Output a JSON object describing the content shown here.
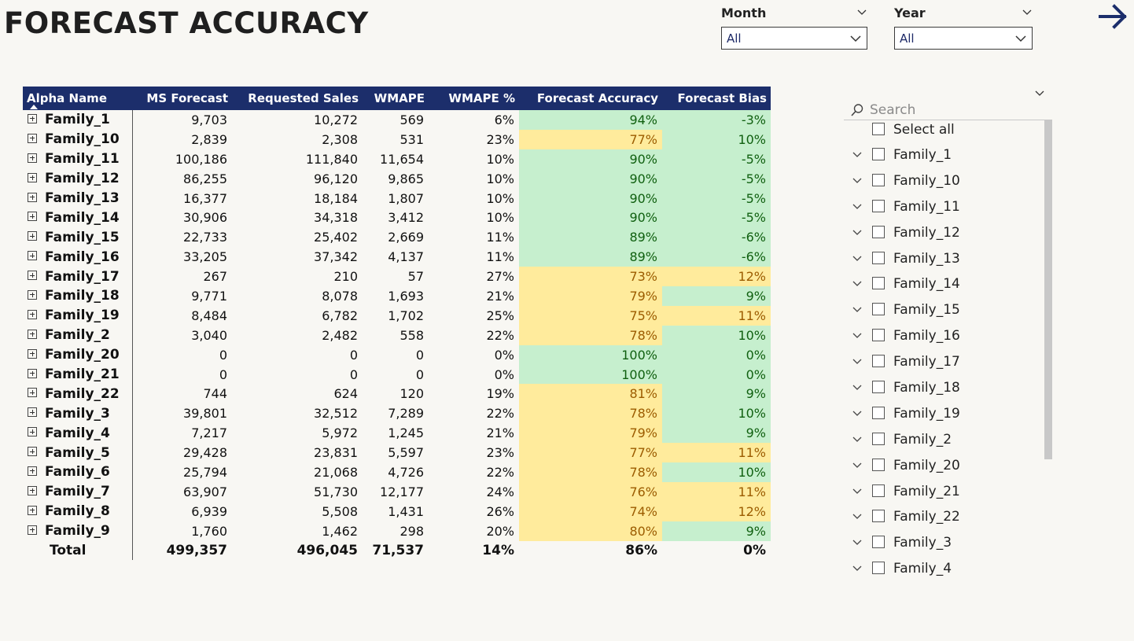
{
  "title": "FORECAST ACCURACY",
  "slicers": {
    "month": {
      "label": "Month",
      "value": "All"
    },
    "year": {
      "label": "Year",
      "value": "All"
    }
  },
  "nav": {
    "icon": "arrow-right-icon",
    "color": "#1c2e6b"
  },
  "colors": {
    "header_bg": "#1c2e6b",
    "good_bg": "#c6efce",
    "good_text": "#106010",
    "warn_bg": "#ffeb9c",
    "warn_text": "#9c5c00"
  },
  "table": {
    "columns": [
      "Alpha Name",
      "MS Forecast",
      "Requested Sales",
      "WMAPE",
      "WMAPE %",
      "Forecast Accuracy",
      "Forecast Bias"
    ],
    "sorted_column": "Alpha Name",
    "rows": [
      {
        "name": "Family_1",
        "ms": "9,703",
        "req": "10,272",
        "wmape": "569",
        "wpct": "6%",
        "acc": "94%",
        "acc_status": "green",
        "bias": "-3%",
        "bias_status": "green"
      },
      {
        "name": "Family_10",
        "ms": "2,839",
        "req": "2,308",
        "wmape": "531",
        "wpct": "23%",
        "acc": "77%",
        "acc_status": "yellow",
        "bias": "10%",
        "bias_status": "green"
      },
      {
        "name": "Family_11",
        "ms": "100,186",
        "req": "111,840",
        "wmape": "11,654",
        "wpct": "10%",
        "acc": "90%",
        "acc_status": "green",
        "bias": "-5%",
        "bias_status": "green"
      },
      {
        "name": "Family_12",
        "ms": "86,255",
        "req": "96,120",
        "wmape": "9,865",
        "wpct": "10%",
        "acc": "90%",
        "acc_status": "green",
        "bias": "-5%",
        "bias_status": "green"
      },
      {
        "name": "Family_13",
        "ms": "16,377",
        "req": "18,184",
        "wmape": "1,807",
        "wpct": "10%",
        "acc": "90%",
        "acc_status": "green",
        "bias": "-5%",
        "bias_status": "green"
      },
      {
        "name": "Family_14",
        "ms": "30,906",
        "req": "34,318",
        "wmape": "3,412",
        "wpct": "10%",
        "acc": "90%",
        "acc_status": "green",
        "bias": "-5%",
        "bias_status": "green"
      },
      {
        "name": "Family_15",
        "ms": "22,733",
        "req": "25,402",
        "wmape": "2,669",
        "wpct": "11%",
        "acc": "89%",
        "acc_status": "green",
        "bias": "-6%",
        "bias_status": "green"
      },
      {
        "name": "Family_16",
        "ms": "33,205",
        "req": "37,342",
        "wmape": "4,137",
        "wpct": "11%",
        "acc": "89%",
        "acc_status": "green",
        "bias": "-6%",
        "bias_status": "green"
      },
      {
        "name": "Family_17",
        "ms": "267",
        "req": "210",
        "wmape": "57",
        "wpct": "27%",
        "acc": "73%",
        "acc_status": "yellow",
        "bias": "12%",
        "bias_status": "yellow"
      },
      {
        "name": "Family_18",
        "ms": "9,771",
        "req": "8,078",
        "wmape": "1,693",
        "wpct": "21%",
        "acc": "79%",
        "acc_status": "yellow",
        "bias": "9%",
        "bias_status": "green"
      },
      {
        "name": "Family_19",
        "ms": "8,484",
        "req": "6,782",
        "wmape": "1,702",
        "wpct": "25%",
        "acc": "75%",
        "acc_status": "yellow",
        "bias": "11%",
        "bias_status": "yellow"
      },
      {
        "name": "Family_2",
        "ms": "3,040",
        "req": "2,482",
        "wmape": "558",
        "wpct": "22%",
        "acc": "78%",
        "acc_status": "yellow",
        "bias": "10%",
        "bias_status": "green"
      },
      {
        "name": "Family_20",
        "ms": "0",
        "req": "0",
        "wmape": "0",
        "wpct": "0%",
        "acc": "100%",
        "acc_status": "green",
        "bias": "0%",
        "bias_status": "green"
      },
      {
        "name": "Family_21",
        "ms": "0",
        "req": "0",
        "wmape": "0",
        "wpct": "0%",
        "acc": "100%",
        "acc_status": "green",
        "bias": "0%",
        "bias_status": "green"
      },
      {
        "name": "Family_22",
        "ms": "744",
        "req": "624",
        "wmape": "120",
        "wpct": "19%",
        "acc": "81%",
        "acc_status": "yellow",
        "bias": "9%",
        "bias_status": "green"
      },
      {
        "name": "Family_3",
        "ms": "39,801",
        "req": "32,512",
        "wmape": "7,289",
        "wpct": "22%",
        "acc": "78%",
        "acc_status": "yellow",
        "bias": "10%",
        "bias_status": "green"
      },
      {
        "name": "Family_4",
        "ms": "7,217",
        "req": "5,972",
        "wmape": "1,245",
        "wpct": "21%",
        "acc": "79%",
        "acc_status": "yellow",
        "bias": "9%",
        "bias_status": "green"
      },
      {
        "name": "Family_5",
        "ms": "29,428",
        "req": "23,831",
        "wmape": "5,597",
        "wpct": "23%",
        "acc": "77%",
        "acc_status": "yellow",
        "bias": "11%",
        "bias_status": "yellow"
      },
      {
        "name": "Family_6",
        "ms": "25,794",
        "req": "21,068",
        "wmape": "4,726",
        "wpct": "22%",
        "acc": "78%",
        "acc_status": "yellow",
        "bias": "10%",
        "bias_status": "green"
      },
      {
        "name": "Family_7",
        "ms": "63,907",
        "req": "51,730",
        "wmape": "12,177",
        "wpct": "24%",
        "acc": "76%",
        "acc_status": "yellow",
        "bias": "11%",
        "bias_status": "yellow"
      },
      {
        "name": "Family_8",
        "ms": "6,939",
        "req": "5,508",
        "wmape": "1,431",
        "wpct": "26%",
        "acc": "74%",
        "acc_status": "yellow",
        "bias": "12%",
        "bias_status": "yellow"
      },
      {
        "name": "Family_9",
        "ms": "1,760",
        "req": "1,462",
        "wmape": "298",
        "wpct": "20%",
        "acc": "80%",
        "acc_status": "yellow",
        "bias": "9%",
        "bias_status": "green"
      }
    ],
    "total": {
      "name": "Total",
      "ms": "499,357",
      "req": "496,045",
      "wmape": "71,537",
      "wpct": "14%",
      "acc": "86%",
      "bias": "0%"
    }
  },
  "filter_panel": {
    "search_placeholder": "Search",
    "select_all": "Select all",
    "items": [
      "Family_1",
      "Family_10",
      "Family_11",
      "Family_12",
      "Family_13",
      "Family_14",
      "Family_15",
      "Family_16",
      "Family_17",
      "Family_18",
      "Family_19",
      "Family_2",
      "Family_20",
      "Family_21",
      "Family_22",
      "Family_3",
      "Family_4"
    ]
  }
}
